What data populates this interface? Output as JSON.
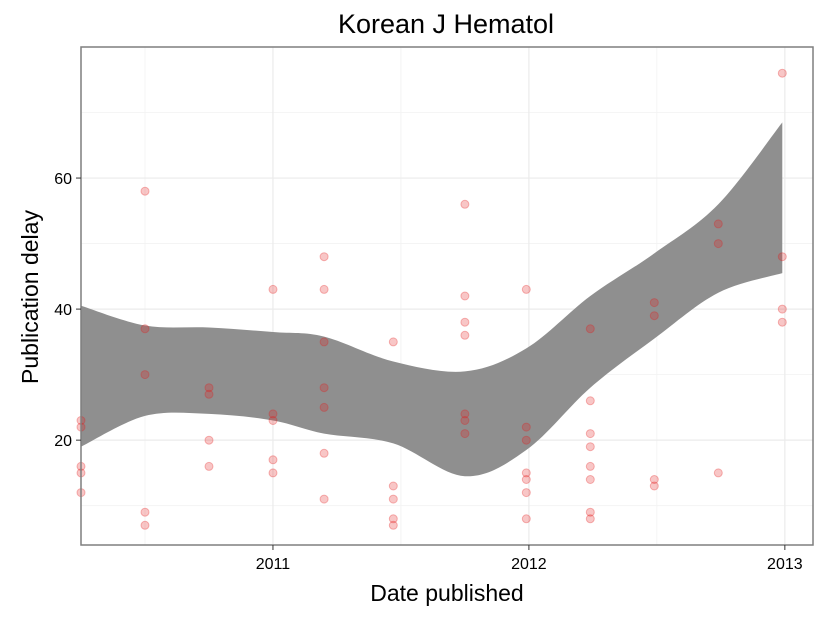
{
  "chart_data": {
    "type": "scatter",
    "title": "Korean J Hematol",
    "xlabel": "Date published",
    "ylabel": "Publication delay",
    "xlim": [
      2010.25,
      2013.11
    ],
    "ylim": [
      4,
      80
    ],
    "x_ticks": [
      {
        "value": 2011,
        "label": "2011"
      },
      {
        "value": 2012,
        "label": "2012"
      },
      {
        "value": 2013,
        "label": "2013"
      }
    ],
    "y_ticks": [
      {
        "value": 20,
        "label": "20"
      },
      {
        "value": 40,
        "label": "40"
      },
      {
        "value": 60,
        "label": "60"
      }
    ],
    "grid": true,
    "point_color": "#e41a1c",
    "band_color": "#8f8f8f",
    "points": [
      {
        "x": 2010.25,
        "y": 23
      },
      {
        "x": 2010.25,
        "y": 22
      },
      {
        "x": 2010.25,
        "y": 16
      },
      {
        "x": 2010.25,
        "y": 15
      },
      {
        "x": 2010.25,
        "y": 12
      },
      {
        "x": 2010.5,
        "y": 58
      },
      {
        "x": 2010.5,
        "y": 37
      },
      {
        "x": 2010.5,
        "y": 30
      },
      {
        "x": 2010.5,
        "y": 9
      },
      {
        "x": 2010.5,
        "y": 7
      },
      {
        "x": 2010.75,
        "y": 28
      },
      {
        "x": 2010.75,
        "y": 27
      },
      {
        "x": 2010.75,
        "y": 20
      },
      {
        "x": 2010.75,
        "y": 16
      },
      {
        "x": 2011.0,
        "y": 43
      },
      {
        "x": 2011.0,
        "y": 24
      },
      {
        "x": 2011.0,
        "y": 23
      },
      {
        "x": 2011.0,
        "y": 17
      },
      {
        "x": 2011.0,
        "y": 15
      },
      {
        "x": 2011.2,
        "y": 48
      },
      {
        "x": 2011.2,
        "y": 43
      },
      {
        "x": 2011.2,
        "y": 35
      },
      {
        "x": 2011.2,
        "y": 28
      },
      {
        "x": 2011.2,
        "y": 25
      },
      {
        "x": 2011.2,
        "y": 18
      },
      {
        "x": 2011.2,
        "y": 11
      },
      {
        "x": 2011.47,
        "y": 35
      },
      {
        "x": 2011.47,
        "y": 13
      },
      {
        "x": 2011.47,
        "y": 11
      },
      {
        "x": 2011.47,
        "y": 8
      },
      {
        "x": 2011.47,
        "y": 7
      },
      {
        "x": 2011.75,
        "y": 56
      },
      {
        "x": 2011.75,
        "y": 42
      },
      {
        "x": 2011.75,
        "y": 38
      },
      {
        "x": 2011.75,
        "y": 36
      },
      {
        "x": 2011.75,
        "y": 24
      },
      {
        "x": 2011.75,
        "y": 23
      },
      {
        "x": 2011.75,
        "y": 21
      },
      {
        "x": 2011.99,
        "y": 43
      },
      {
        "x": 2011.99,
        "y": 22
      },
      {
        "x": 2011.99,
        "y": 20
      },
      {
        "x": 2011.99,
        "y": 15
      },
      {
        "x": 2011.99,
        "y": 14
      },
      {
        "x": 2011.99,
        "y": 12
      },
      {
        "x": 2011.99,
        "y": 8
      },
      {
        "x": 2012.24,
        "y": 37
      },
      {
        "x": 2012.24,
        "y": 26
      },
      {
        "x": 2012.24,
        "y": 21
      },
      {
        "x": 2012.24,
        "y": 19
      },
      {
        "x": 2012.24,
        "y": 16
      },
      {
        "x": 2012.24,
        "y": 14
      },
      {
        "x": 2012.24,
        "y": 9
      },
      {
        "x": 2012.24,
        "y": 8
      },
      {
        "x": 2012.49,
        "y": 41
      },
      {
        "x": 2012.49,
        "y": 39
      },
      {
        "x": 2012.49,
        "y": 14
      },
      {
        "x": 2012.49,
        "y": 13
      },
      {
        "x": 2012.74,
        "y": 53
      },
      {
        "x": 2012.74,
        "y": 50
      },
      {
        "x": 2012.74,
        "y": 15
      },
      {
        "x": 2012.99,
        "y": 76
      },
      {
        "x": 2012.99,
        "y": 48
      },
      {
        "x": 2012.99,
        "y": 40
      },
      {
        "x": 2012.99,
        "y": 38
      }
    ],
    "smooth_band": {
      "x": [
        2010.25,
        2010.5,
        2010.75,
        2011.0,
        2011.2,
        2011.47,
        2011.75,
        2011.99,
        2012.24,
        2012.49,
        2012.74,
        2012.99
      ],
      "upper": [
        40.5,
        37.5,
        37.2,
        36.5,
        35.8,
        32.0,
        30.5,
        34.0,
        42.0,
        48.5,
        56.0,
        68.5
      ],
      "lower": [
        19.0,
        23.7,
        24.0,
        23.0,
        21.0,
        19.5,
        14.5,
        18.5,
        28.0,
        35.5,
        42.5,
        45.5
      ]
    }
  }
}
